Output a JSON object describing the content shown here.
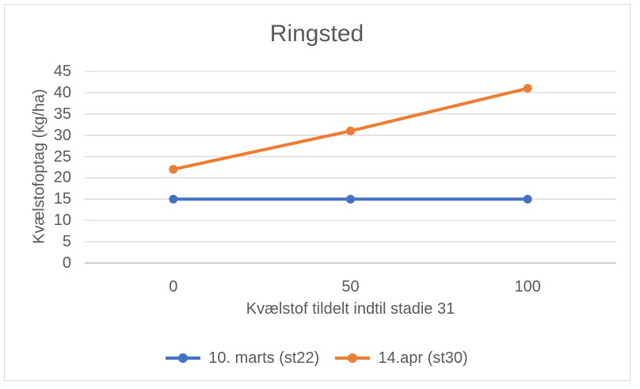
{
  "chart": {
    "colors": {
      "background": "#FFFFFF",
      "border": "#D9D9D9",
      "text": "#595959",
      "gridline": "#D9D9D9",
      "axis_line": "#BFBFBF"
    }
  },
  "chart_data": {
    "type": "line",
    "title": "Ringsted",
    "categories": [
      0,
      50,
      100
    ],
    "series": [
      {
        "name": "10. marts (st22)",
        "values": [
          15,
          15,
          15
        ],
        "color": "#4472C4"
      },
      {
        "name": "14.apr (st30)",
        "values": [
          22,
          31,
          41
        ],
        "color": "#ED7D31"
      }
    ],
    "xlabel": "Kvælstof tildelt indtil stadie 31",
    "ylabel": "Kvælstofoptag (kg/ha)",
    "ylim": [
      0,
      45
    ],
    "ytick_step": 5,
    "grid": "horizontal",
    "legend_position": "bottom",
    "marker": "circle"
  }
}
